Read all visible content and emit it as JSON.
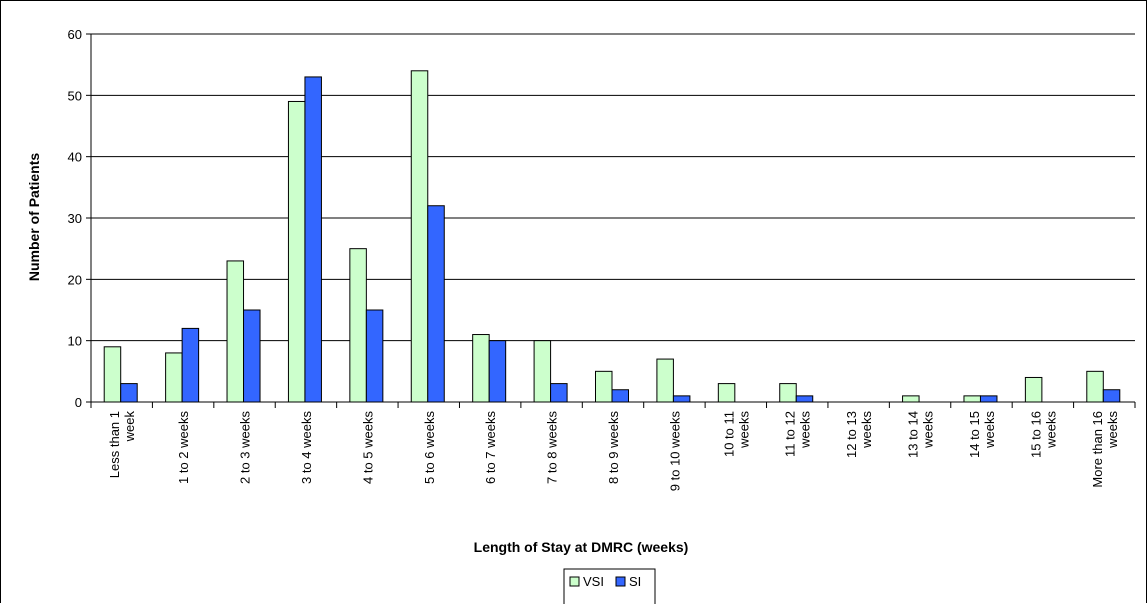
{
  "chart_data": {
    "type": "bar",
    "title": "",
    "xlabel": "Length of Stay at DMRC (weeks)",
    "ylabel": "Number of Patients",
    "ylim": [
      0,
      60
    ],
    "yticks": [
      0,
      10,
      20,
      30,
      40,
      50,
      60
    ],
    "grid": true,
    "legend_position": "bottom",
    "categories": [
      "Less than 1 week",
      "1 to 2 weeks",
      "2 to 3 weeks",
      "3 to 4 weeks",
      "4 to 5 weeks",
      "5 to 6 weeks",
      "6 to 7 weeks",
      "7 to 8 weeks",
      "8 to 9 weeks",
      "9 to 10 weeks",
      "10 to 11 weeks",
      "11 to 12 weeks",
      "12 to 13 weeks",
      "13 to 14 weeks",
      "14 to 15 weeks",
      "15 to 16 weeks",
      "More than 16 weeks"
    ],
    "category_label_lines": [
      [
        "Less than 1",
        "week"
      ],
      [
        "1 to 2 weeks"
      ],
      [
        "2 to 3 weeks"
      ],
      [
        "3 to 4 weeks"
      ],
      [
        "4 to 5 weeks"
      ],
      [
        "5 to 6 weeks"
      ],
      [
        "6 to 7 weeks"
      ],
      [
        "7 to 8 weeks"
      ],
      [
        "8 to 9 weeks"
      ],
      [
        "9 to 10 weeks"
      ],
      [
        "10 to 11",
        "weeks"
      ],
      [
        "11 to 12",
        "weeks"
      ],
      [
        "12 to 13",
        "weeks"
      ],
      [
        "13 to 14",
        "weeks"
      ],
      [
        "14 to 15",
        "weeks"
      ],
      [
        "15 to 16",
        "weeks"
      ],
      [
        "More than 16",
        "weeks"
      ]
    ],
    "series": [
      {
        "name": "VSI",
        "color": "#ccffcc",
        "values": [
          9,
          8,
          23,
          49,
          25,
          54,
          11,
          10,
          5,
          7,
          3,
          3,
          0,
          1,
          1,
          4,
          5
        ]
      },
      {
        "name": "SI",
        "color": "#3366ff",
        "values": [
          3,
          12,
          15,
          53,
          15,
          32,
          10,
          3,
          2,
          1,
          0,
          1,
          0,
          0,
          1,
          0,
          2
        ]
      }
    ]
  }
}
